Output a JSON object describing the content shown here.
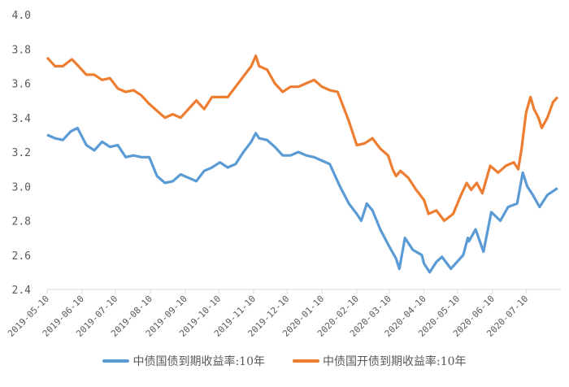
{
  "chart_data": {
    "type": "line",
    "title": "",
    "xlabel": "",
    "ylabel": "",
    "ylim": [
      2.4,
      4.0
    ],
    "yticks": [
      "2.4",
      "2.6",
      "2.8",
      "3.0",
      "3.2",
      "3.4",
      "3.6",
      "3.8",
      "4.0"
    ],
    "xlim": [
      "2019-05-10",
      "2020-08-10"
    ],
    "xticks": [
      "2019-05-10",
      "2019-06-10",
      "2019-07-10",
      "2019-08-10",
      "2019-09-10",
      "2019-10-10",
      "2019-11-10",
      "2019-12-10",
      "2020-01-10",
      "2020-02-10",
      "2020-03-10",
      "2020-04-10",
      "2020-05-10",
      "2020-06-10",
      "2020-07-10"
    ],
    "grid": false,
    "legend_position": "bottom",
    "series": [
      {
        "name": "中债国债到期收益率:10年",
        "color": "#5b9bd5",
        "x": [
          "2019-05-10",
          "2019-05-17",
          "2019-05-24",
          "2019-05-31",
          "2019-06-06",
          "2019-06-14",
          "2019-06-21",
          "2019-06-28",
          "2019-07-05",
          "2019-07-12",
          "2019-07-19",
          "2019-07-26",
          "2019-08-02",
          "2019-08-09",
          "2019-08-16",
          "2019-08-23",
          "2019-08-30",
          "2019-09-06",
          "2019-09-13",
          "2019-09-20",
          "2019-09-27",
          "2019-10-04",
          "2019-10-11",
          "2019-10-18",
          "2019-10-25",
          "2019-11-01",
          "2019-11-08",
          "2019-11-12",
          "2019-11-15",
          "2019-11-22",
          "2019-11-29",
          "2019-12-06",
          "2019-12-13",
          "2019-12-20",
          "2019-12-27",
          "2020-01-03",
          "2020-01-10",
          "2020-01-17",
          "2020-01-26",
          "2020-02-03",
          "2020-02-10",
          "2020-02-14",
          "2020-02-19",
          "2020-02-24",
          "2020-03-02",
          "2020-03-10",
          "2020-03-16",
          "2020-03-19",
          "2020-03-24",
          "2020-03-31",
          "2020-04-08",
          "2020-04-10",
          "2020-04-15",
          "2020-04-21",
          "2020-04-26",
          "2020-05-04",
          "2020-05-08",
          "2020-05-15",
          "2020-05-19",
          "2020-05-20",
          "2020-05-26",
          "2020-06-02",
          "2020-06-09",
          "2020-06-17",
          "2020-06-24",
          "2020-07-02",
          "2020-07-07",
          "2020-07-11",
          "2020-07-16",
          "2020-07-22",
          "2020-07-29",
          "2020-08-07"
        ],
        "values": [
          3.3,
          3.28,
          3.27,
          3.32,
          3.34,
          3.24,
          3.21,
          3.26,
          3.23,
          3.24,
          3.17,
          3.18,
          3.17,
          3.17,
          3.06,
          3.02,
          3.03,
          3.07,
          3.05,
          3.03,
          3.09,
          3.11,
          3.14,
          3.11,
          3.13,
          3.2,
          3.26,
          3.31,
          3.28,
          3.27,
          3.23,
          3.18,
          3.18,
          3.2,
          3.18,
          3.17,
          3.15,
          3.13,
          3.0,
          2.9,
          2.84,
          2.8,
          2.9,
          2.86,
          2.75,
          2.65,
          2.58,
          2.52,
          2.7,
          2.63,
          2.6,
          2.55,
          2.5,
          2.56,
          2.59,
          2.52,
          2.55,
          2.6,
          2.7,
          2.68,
          2.75,
          2.62,
          2.85,
          2.8,
          2.88,
          2.9,
          3.08,
          3.0,
          2.95,
          2.88,
          2.95,
          2.99
        ]
      },
      {
        "name": "中债国开债到期收益率:10年",
        "color": "#ed7d31",
        "x": [
          "2019-05-10",
          "2019-05-17",
          "2019-05-24",
          "2019-06-01",
          "2019-06-07",
          "2019-06-14",
          "2019-06-21",
          "2019-06-28",
          "2019-07-05",
          "2019-07-12",
          "2019-07-19",
          "2019-07-26",
          "2019-08-02",
          "2019-08-09",
          "2019-08-16",
          "2019-08-23",
          "2019-08-30",
          "2019-09-06",
          "2019-09-13",
          "2019-09-20",
          "2019-09-27",
          "2019-10-04",
          "2019-10-11",
          "2019-10-18",
          "2019-10-25",
          "2019-11-01",
          "2019-11-08",
          "2019-11-12",
          "2019-11-15",
          "2019-11-22",
          "2019-11-29",
          "2019-12-06",
          "2019-12-13",
          "2019-12-20",
          "2019-12-27",
          "2020-01-03",
          "2020-01-10",
          "2020-01-17",
          "2020-01-24",
          "2020-02-03",
          "2020-02-10",
          "2020-02-17",
          "2020-02-24",
          "2020-03-02",
          "2020-03-09",
          "2020-03-13",
          "2020-03-16",
          "2020-03-20",
          "2020-03-27",
          "2020-04-03",
          "2020-04-10",
          "2020-04-14",
          "2020-04-21",
          "2020-04-28",
          "2020-05-06",
          "2020-05-13",
          "2020-05-18",
          "2020-05-22",
          "2020-05-27",
          "2020-06-01",
          "2020-06-08",
          "2020-06-15",
          "2020-06-22",
          "2020-06-29",
          "2020-07-03",
          "2020-07-06",
          "2020-07-10",
          "2020-07-14",
          "2020-07-17",
          "2020-07-21",
          "2020-07-24",
          "2020-07-29",
          "2020-08-03",
          "2020-08-07"
        ],
        "values": [
          3.75,
          3.7,
          3.7,
          3.74,
          3.7,
          3.65,
          3.65,
          3.62,
          3.63,
          3.57,
          3.55,
          3.56,
          3.53,
          3.48,
          3.44,
          3.4,
          3.42,
          3.4,
          3.45,
          3.5,
          3.45,
          3.52,
          3.52,
          3.52,
          3.58,
          3.64,
          3.7,
          3.76,
          3.7,
          3.68,
          3.6,
          3.55,
          3.58,
          3.58,
          3.6,
          3.62,
          3.58,
          3.56,
          3.55,
          3.38,
          3.24,
          3.25,
          3.28,
          3.22,
          3.18,
          3.1,
          3.06,
          3.09,
          3.05,
          2.98,
          2.92,
          2.84,
          2.86,
          2.8,
          2.84,
          2.95,
          3.02,
          2.98,
          3.02,
          2.96,
          3.12,
          3.08,
          3.12,
          3.14,
          3.1,
          3.22,
          3.43,
          3.52,
          3.45,
          3.4,
          3.34,
          3.4,
          3.49,
          3.52
        ]
      }
    ]
  }
}
